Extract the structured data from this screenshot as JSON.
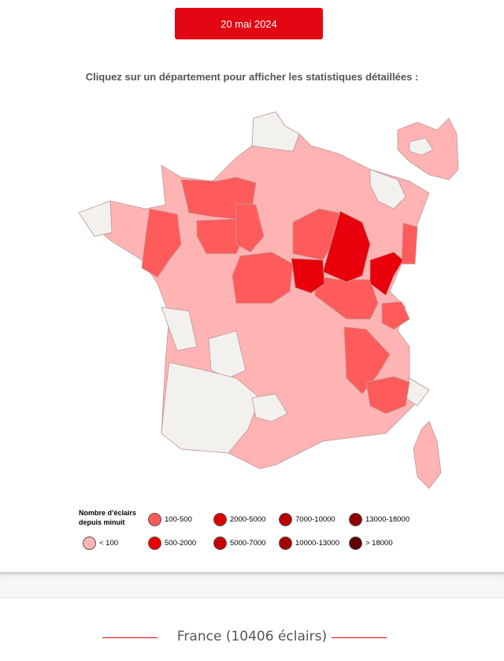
{
  "header": {
    "date_label": "20 mai 2024"
  },
  "instruction": "Cliquez sur un département pour afficher les statistiques détaillées :",
  "colors": {
    "none": "#f3f1ee",
    "lt100": "#ffb3b3",
    "c100_500": "#ff5b5b",
    "c500_2000": "#e8000b",
    "border": "#c8a0a0",
    "accent": "#e30613"
  },
  "legend": {
    "title": "Nombre d’éclairs depuis minuit",
    "items": [
      {
        "label": "< 100",
        "color": "#ffb6b6"
      },
      {
        "label": "100-500",
        "color": "#ff5a5a"
      },
      {
        "label": "500-2000",
        "color": "#ec0000"
      },
      {
        "label": "2000-5000",
        "color": "#dc0000"
      },
      {
        "label": "5000-7000",
        "color": "#c80000"
      },
      {
        "label": "7000-10000",
        "color": "#b80000"
      },
      {
        "label": "10000-13000",
        "color": "#a80000"
      },
      {
        "label": "13000-18000",
        "color": "#900000"
      },
      {
        "label": "> 18000",
        "color": "#600000"
      }
    ]
  },
  "footer": {
    "summary": "France (10406 éclairs)"
  }
}
